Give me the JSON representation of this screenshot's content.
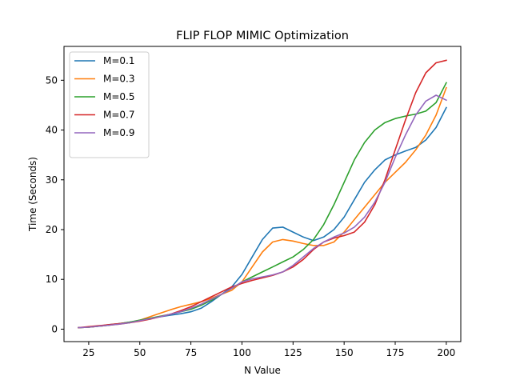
{
  "chart_data": {
    "type": "line",
    "title": "FLIP FLOP MIMIC Optimization",
    "xlabel": "N Value",
    "ylabel": "Time (Seconds)",
    "xlim": [
      12.9,
      207.1
    ],
    "ylim": [
      -2.5,
      56.8
    ],
    "xticks": [
      25,
      50,
      75,
      100,
      125,
      150,
      175,
      200
    ],
    "yticks": [
      0,
      10,
      20,
      30,
      40,
      50
    ],
    "grid": false,
    "legend_position": "top-left",
    "x": [
      20,
      25,
      30,
      35,
      40,
      45,
      50,
      55,
      60,
      65,
      70,
      75,
      80,
      85,
      90,
      95,
      100,
      105,
      110,
      115,
      120,
      125,
      130,
      135,
      140,
      145,
      150,
      155,
      160,
      165,
      170,
      175,
      180,
      185,
      190,
      195,
      200
    ],
    "series": [
      {
        "name": "M=0.1",
        "color": "#1f77b4",
        "values": [
          0.3,
          0.4,
          0.6,
          0.9,
          1.1,
          1.4,
          1.7,
          2.1,
          2.5,
          2.8,
          3.1,
          3.5,
          4.2,
          5.5,
          7.0,
          8.5,
          11.0,
          14.5,
          18.0,
          20.3,
          20.5,
          19.5,
          18.5,
          17.8,
          18.5,
          20.0,
          22.5,
          26.0,
          29.5,
          32.0,
          34.0,
          35.0,
          35.8,
          36.5,
          38.0,
          40.5,
          44.5
        ]
      },
      {
        "name": "M=0.3",
        "color": "#ff7f0e",
        "values": [
          0.3,
          0.4,
          0.6,
          0.8,
          1.0,
          1.3,
          1.8,
          2.5,
          3.2,
          3.9,
          4.5,
          5.0,
          5.5,
          6.2,
          7.0,
          7.8,
          9.5,
          12.5,
          15.5,
          17.5,
          18.0,
          17.7,
          17.2,
          16.8,
          16.8,
          17.5,
          19.5,
          22.0,
          24.5,
          27.0,
          29.5,
          31.5,
          33.5,
          36.0,
          39.0,
          43.0,
          48.5
        ]
      },
      {
        "name": "M=0.5",
        "color": "#2ca02c",
        "values": [
          0.3,
          0.4,
          0.6,
          0.8,
          1.1,
          1.4,
          1.8,
          2.2,
          2.6,
          3.0,
          3.5,
          4.0,
          4.8,
          5.8,
          7.0,
          8.2,
          9.5,
          10.5,
          11.5,
          12.5,
          13.5,
          14.5,
          16.0,
          18.0,
          21.0,
          25.0,
          29.5,
          34.0,
          37.5,
          40.0,
          41.5,
          42.3,
          42.8,
          43.2,
          43.8,
          45.5,
          49.5
        ]
      },
      {
        "name": "M=0.7",
        "color": "#d62728",
        "values": [
          0.3,
          0.5,
          0.7,
          0.9,
          1.1,
          1.3,
          1.6,
          2.0,
          2.5,
          3.0,
          3.7,
          4.5,
          5.5,
          6.5,
          7.5,
          8.5,
          9.2,
          9.8,
          10.3,
          10.8,
          11.5,
          12.5,
          14.0,
          16.0,
          17.5,
          18.3,
          18.8,
          19.5,
          21.5,
          25.0,
          30.0,
          36.0,
          42.0,
          47.5,
          51.5,
          53.5,
          54.0
        ]
      },
      {
        "name": "M=0.9",
        "color": "#9467bd",
        "values": [
          0.3,
          0.4,
          0.6,
          0.8,
          1.0,
          1.3,
          1.7,
          2.1,
          2.5,
          3.0,
          3.5,
          4.2,
          5.0,
          6.0,
          7.0,
          8.2,
          9.5,
          10.1,
          10.5,
          10.9,
          11.5,
          12.8,
          14.5,
          16.2,
          17.5,
          18.5,
          19.3,
          20.5,
          22.5,
          25.5,
          29.5,
          34.5,
          39.0,
          43.0,
          45.8,
          47.0,
          46.0
        ]
      }
    ]
  }
}
